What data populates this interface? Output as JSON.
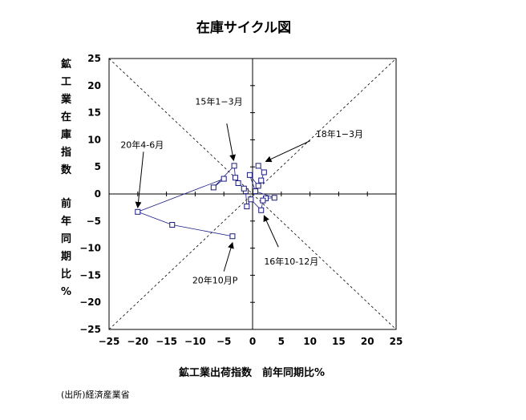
{
  "chart_data": {
    "type": "scatter",
    "title": "在庫サイクル図",
    "xlabel": "鉱工業出荷指数　前年同期比%",
    "ylabel_top": "鉱工業在庫指数",
    "ylabel_bottom": "前年同期比%",
    "xlim": [
      -25,
      25
    ],
    "ylim": [
      -25,
      25
    ],
    "xticks": [
      "−25",
      "−20",
      "−15",
      "−10",
      "−5",
      "0",
      "5",
      "10",
      "15",
      "20",
      "25"
    ],
    "yticks": [
      "25",
      "20",
      "15",
      "10",
      "5",
      "0",
      "−5",
      "−10",
      "−15",
      "−20",
      "−25"
    ],
    "reference_lines": "diagonals y=x and y=-x (dashed)",
    "points": [
      {
        "x": 1.0,
        "y": 5.2
      },
      {
        "x": 2.0,
        "y": 4.0
      },
      {
        "x": 1.5,
        "y": 2.5
      },
      {
        "x": 1.0,
        "y": 1.5
      },
      {
        "x": -0.5,
        "y": 3.5
      },
      {
        "x": 0.5,
        "y": 0.5
      },
      {
        "x": 3.8,
        "y": -0.7
      },
      {
        "x": 2.3,
        "y": -0.8
      },
      {
        "x": 1.8,
        "y": -1.2
      },
      {
        "x": 1.5,
        "y": -3.0
      },
      {
        "x": -0.3,
        "y": -1.0
      },
      {
        "x": -1.0,
        "y": -2.3
      },
      {
        "x": -1.2,
        "y": 0.5
      },
      {
        "x": -1.5,
        "y": 1.0
      },
      {
        "x": -2.5,
        "y": 2.0
      },
      {
        "x": -3.0,
        "y": 3.0
      },
      {
        "x": -3.2,
        "y": 5.2
      },
      {
        "x": -6.8,
        "y": 1.2
      },
      {
        "x": -5.0,
        "y": 2.8
      },
      {
        "x": -20.0,
        "y": -3.3
      },
      {
        "x": -14.0,
        "y": -5.7
      },
      {
        "x": -3.5,
        "y": -7.8
      }
    ],
    "connected_path": [
      {
        "x": -5.0,
        "y": 2.8
      },
      {
        "x": -20.0,
        "y": -3.3
      },
      {
        "x": -14.0,
        "y": -5.7
      },
      {
        "x": -3.5,
        "y": -7.8
      }
    ],
    "annotations": [
      {
        "text": "15年1−3月",
        "x_text": -10.0,
        "y_text": 16.5,
        "x_tail": -4.5,
        "y_tail": 13.0,
        "x_head": -3.3,
        "y_head": 6.2
      },
      {
        "text": "18年1−3月",
        "x_text": 11.0,
        "y_text": 10.5,
        "x_tail": 10.0,
        "y_tail": 9.8,
        "x_head": 2.3,
        "y_head": 6.0
      },
      {
        "text": "20年4-6月",
        "x_text": -23.0,
        "y_text": 8.5,
        "x_tail": -19.0,
        "y_tail": 7.8,
        "x_head": -20.0,
        "y_head": -2.5
      },
      {
        "text": "16年10-12月",
        "x_text": 2.0,
        "y_text": -13.0,
        "x_tail": 4.5,
        "y_tail": -9.8,
        "x_head": 2.0,
        "y_head": -4.0
      },
      {
        "text": "20年10月P",
        "x_text": -10.5,
        "y_text": -16.5,
        "x_tail": -5.0,
        "y_tail": -14.3,
        "x_head": -3.5,
        "y_head": -9.0
      }
    ],
    "grid": false
  },
  "source_note": "(出所)経済産業省",
  "colors": {
    "series": "#1a1a80",
    "axis": "#000000"
  }
}
